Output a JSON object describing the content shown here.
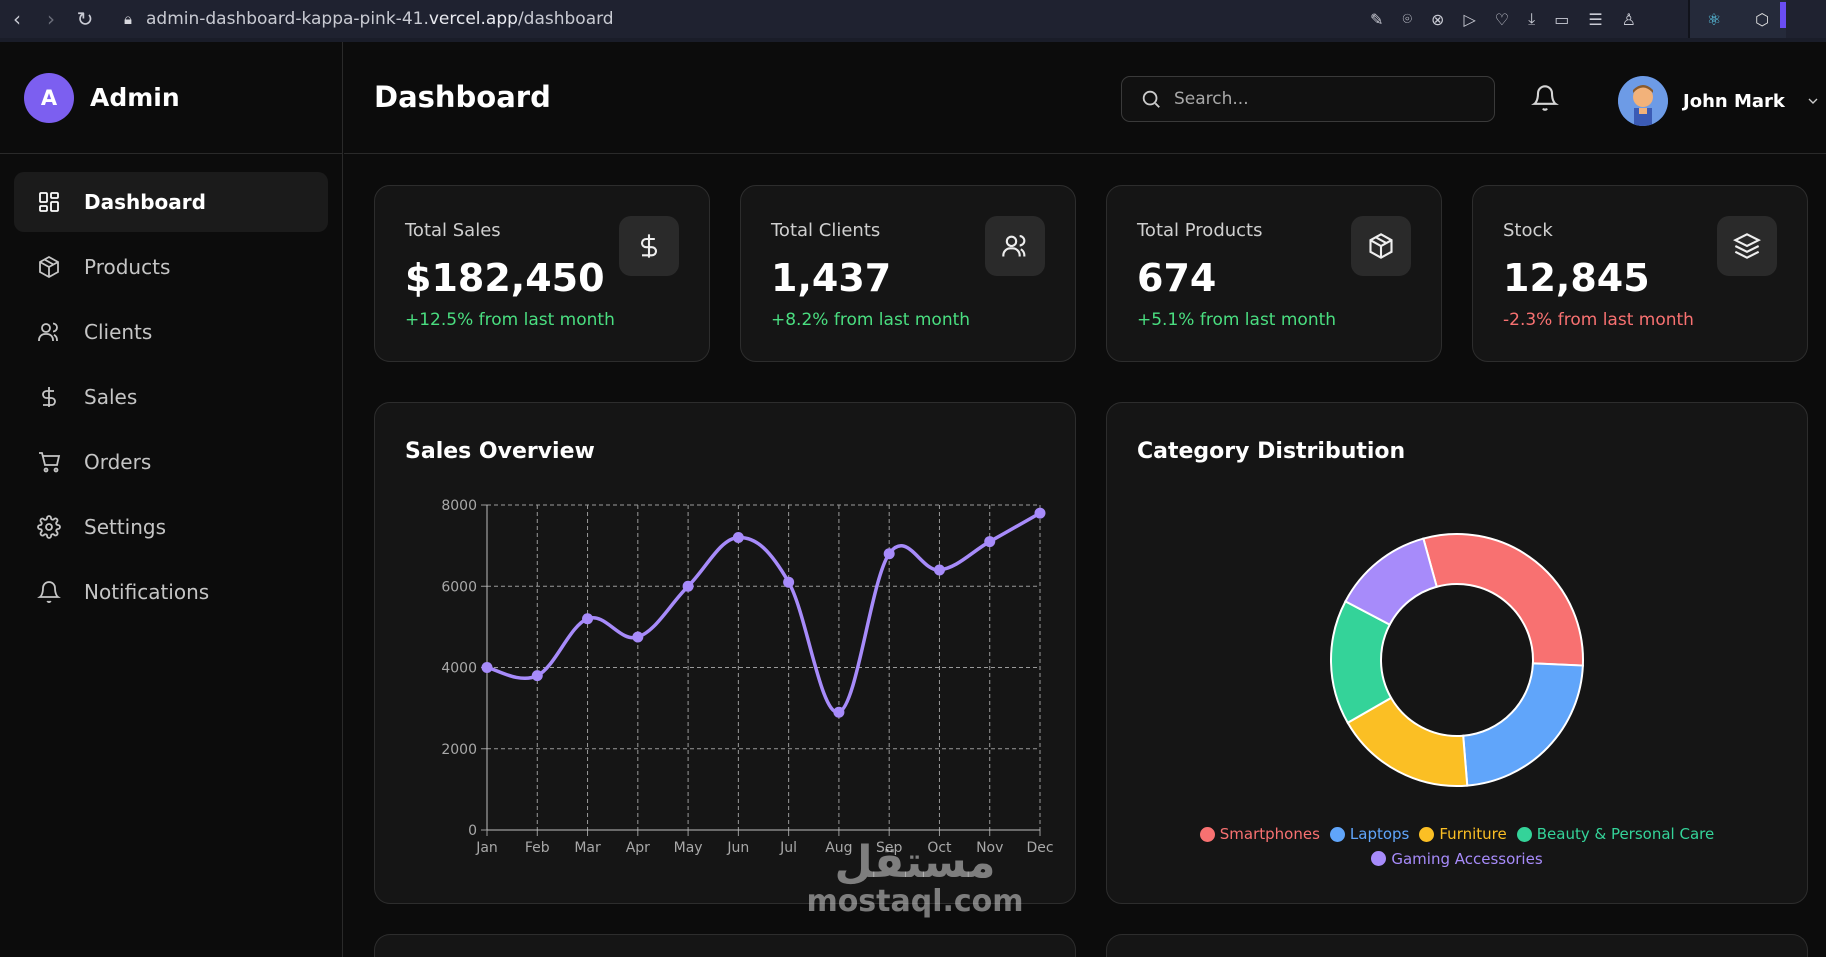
{
  "browser": {
    "url_prefix": "admin-dashboard-kappa-pink-41.",
    "url_domain": "vercel.app",
    "url_path": "/dashboard"
  },
  "sidebar": {
    "brand_initial": "A",
    "brand_name": "Admin",
    "items": [
      {
        "label": "Dashboard",
        "icon": "dashboard-icon",
        "active": true
      },
      {
        "label": "Products",
        "icon": "box-icon"
      },
      {
        "label": "Clients",
        "icon": "users-icon"
      },
      {
        "label": "Sales",
        "icon": "dollar-icon"
      },
      {
        "label": "Orders",
        "icon": "cart-icon"
      },
      {
        "label": "Settings",
        "icon": "gear-icon"
      },
      {
        "label": "Notifications",
        "icon": "bell-icon"
      }
    ]
  },
  "header": {
    "title": "Dashboard",
    "search_placeholder": "Search...",
    "user_name": "John Mark"
  },
  "stats": [
    {
      "label": "Total Sales",
      "value": "$182,450",
      "change": "+12.5% from last month",
      "trend": "up",
      "icon": "dollar-icon"
    },
    {
      "label": "Total Clients",
      "value": "1,437",
      "change": "+8.2% from last month",
      "trend": "up",
      "icon": "users-icon"
    },
    {
      "label": "Total Products",
      "value": "674",
      "change": "+5.1% from last month",
      "trend": "up",
      "icon": "box-icon"
    },
    {
      "label": "Stock",
      "value": "12,845",
      "change": "-2.3% from last month",
      "trend": "down",
      "icon": "layers-icon"
    }
  ],
  "colors": {
    "accent": "#a78bfa",
    "up": "#4ade80",
    "down": "#f87171"
  },
  "watermark": {
    "arabic": "مستقل",
    "latin": "mostaql.com"
  },
  "chart_data": [
    {
      "type": "line",
      "title": "Sales Overview",
      "x": [
        "Jan",
        "Feb",
        "Mar",
        "Apr",
        "May",
        "Jun",
        "Jul",
        "Aug",
        "Sep",
        "Oct",
        "Nov",
        "Dec"
      ],
      "series": [
        {
          "values": [
            4000,
            3800,
            5200,
            4750,
            6000,
            7200,
            6100,
            2900,
            6800,
            6400,
            7100,
            7800
          ],
          "color": "#a78bfa"
        }
      ],
      "ylim": [
        0,
        8000
      ],
      "yticks": [
        0,
        2000,
        4000,
        6000,
        8000
      ],
      "grid": true
    },
    {
      "type": "pie",
      "title": "Category Distribution",
      "labels": [
        "Smartphones",
        "Laptops",
        "Furniture",
        "Beauty & Personal Care",
        "Gaming Accessories"
      ],
      "values": [
        30,
        23,
        18,
        16,
        13
      ],
      "colors": [
        "#f87171",
        "#60a5fa",
        "#fbbf24",
        "#34d399",
        "#a78bfa"
      ],
      "legend": "bottom"
    }
  ]
}
